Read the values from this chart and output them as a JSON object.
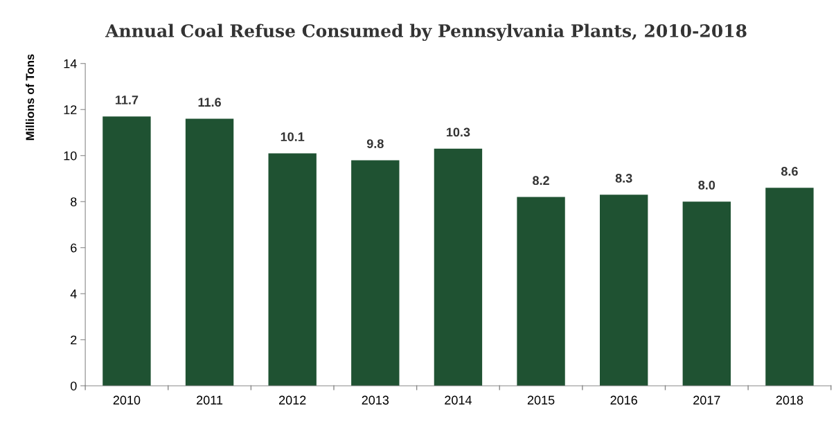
{
  "chart_data": {
    "type": "bar",
    "title": "Annual Coal Refuse Consumed by Pennsylvania Plants, 2010-2018",
    "ylabel": "Millions of Tons",
    "categories": [
      "2010",
      "2011",
      "2012",
      "2013",
      "2014",
      "2015",
      "2016",
      "2017",
      "2018"
    ],
    "values": [
      11.7,
      11.6,
      10.1,
      9.8,
      10.3,
      8.2,
      8.3,
      8.0,
      8.6
    ],
    "value_labels": [
      "11.7",
      "11.6",
      "10.1",
      "9.8",
      "10.3",
      "8.2",
      "8.3",
      "8.0",
      "8.6"
    ],
    "color": "#1f5232",
    "ylim": [
      0,
      14
    ],
    "yticks": [
      0,
      2,
      4,
      6,
      8,
      10,
      12,
      14
    ],
    "grid": false,
    "legend": false
  }
}
